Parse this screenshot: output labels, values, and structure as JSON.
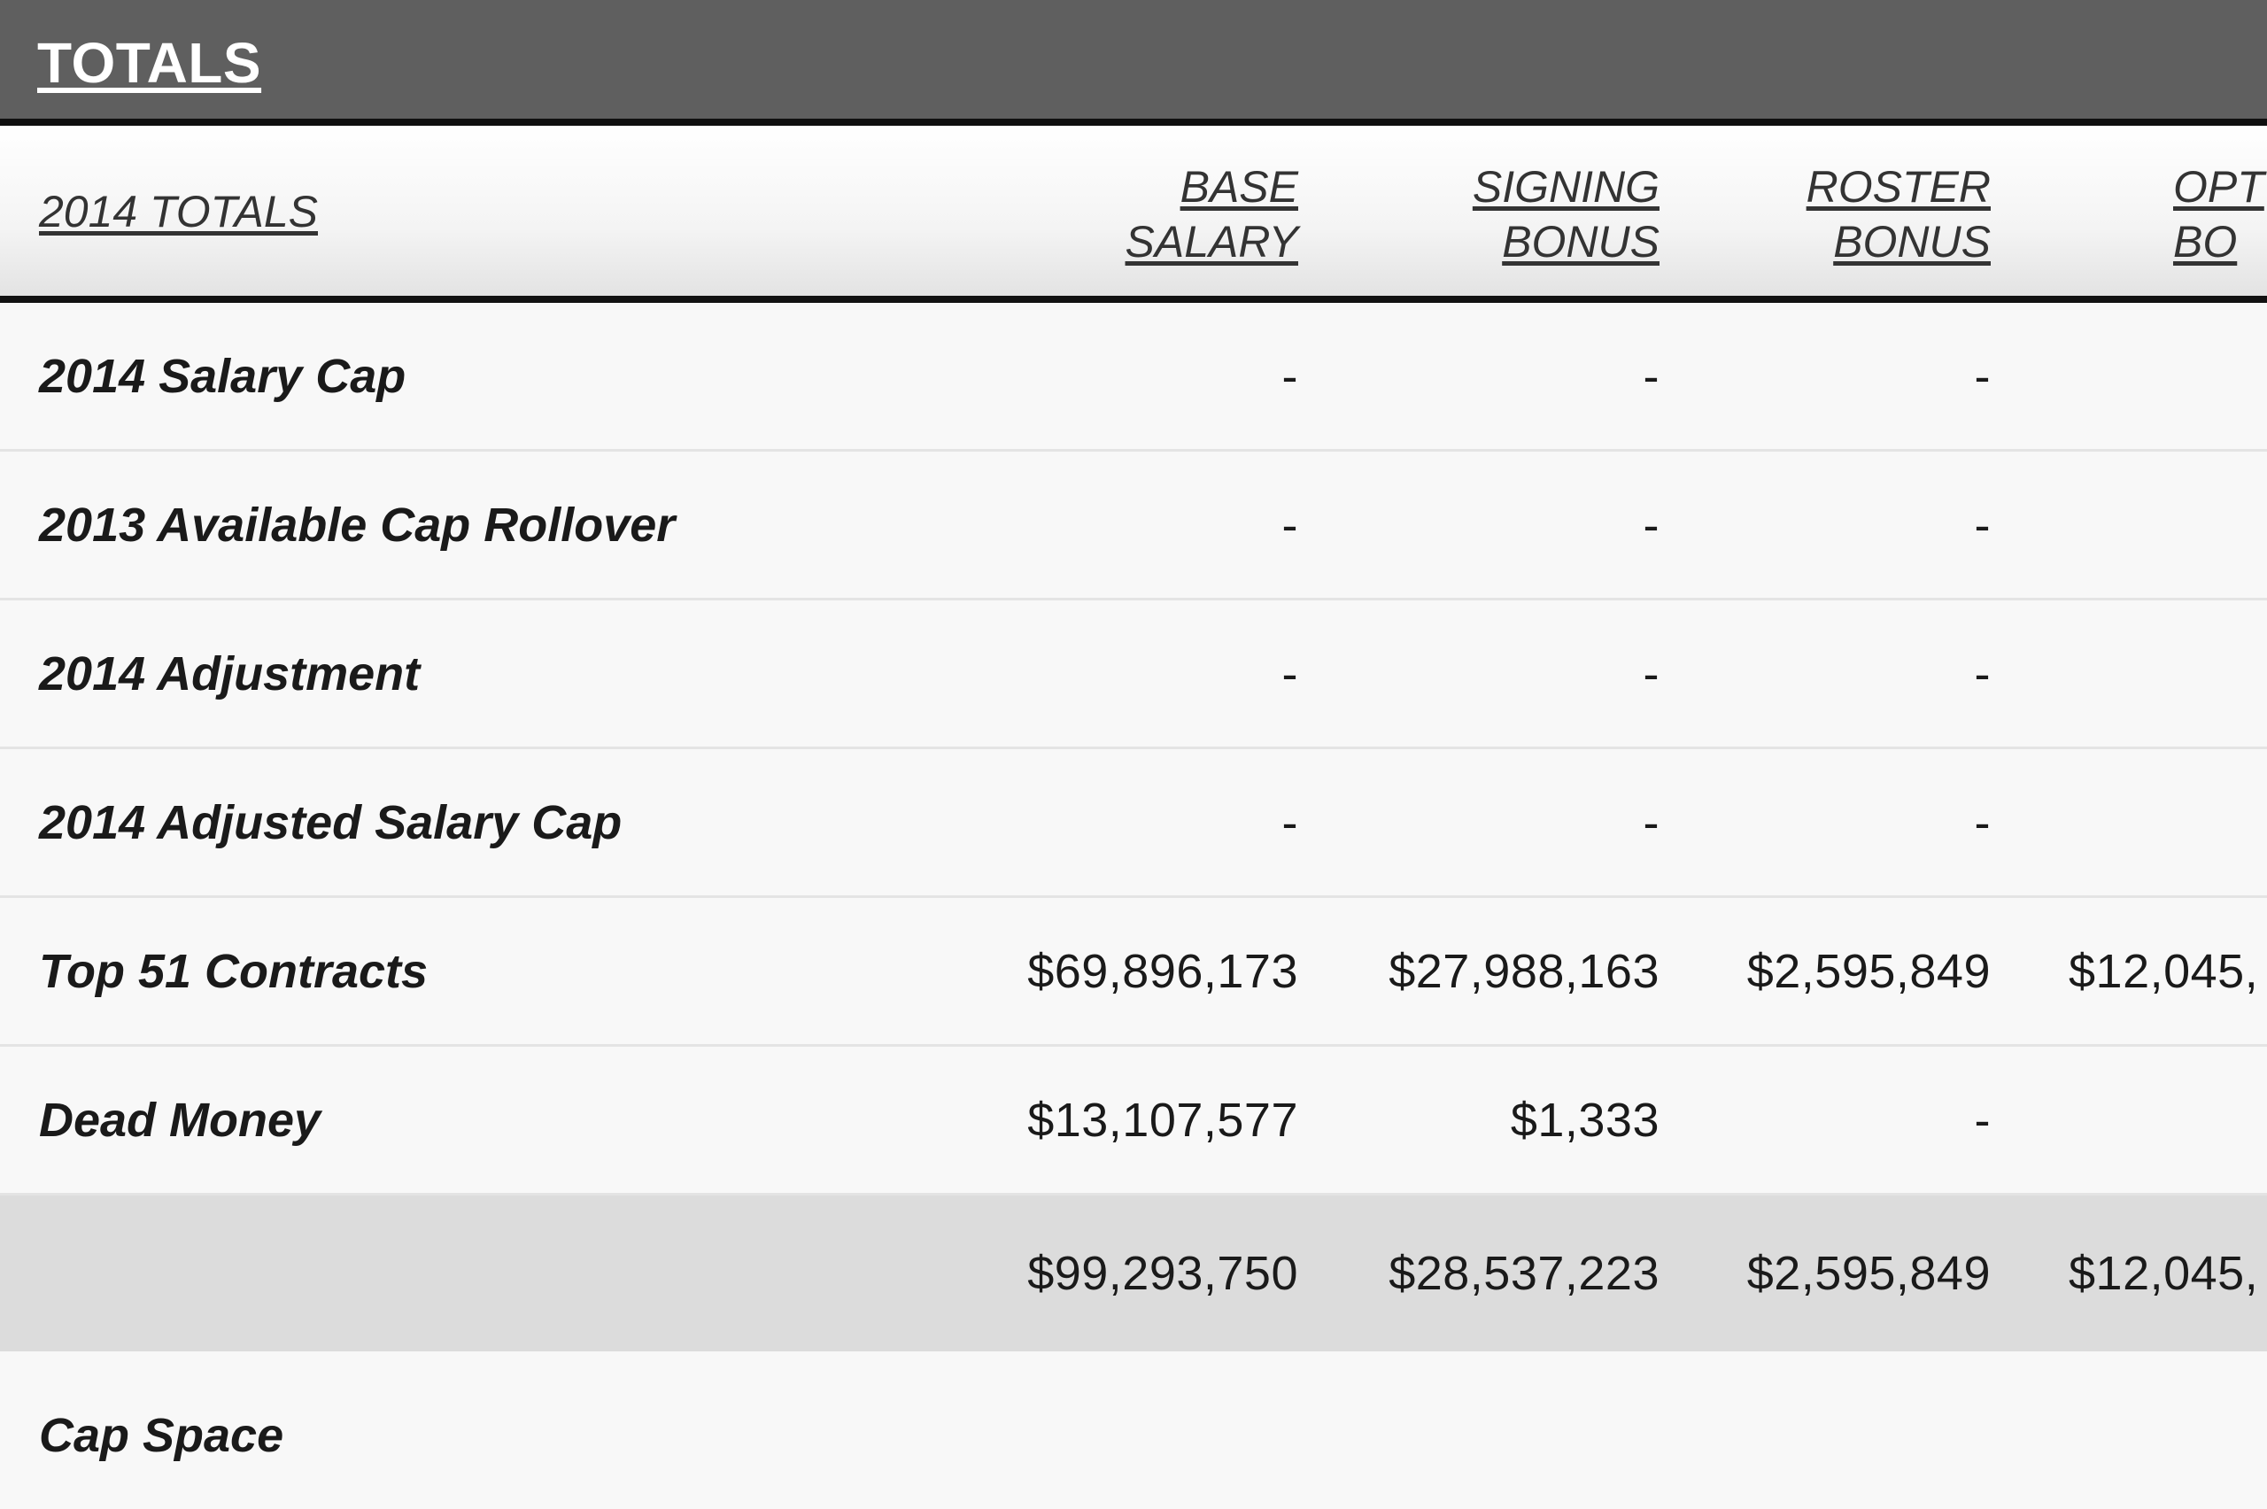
{
  "section": {
    "title": "TOTALS"
  },
  "table": {
    "header": {
      "label": "2014 TOTALS",
      "columns": [
        {
          "line1": "BASE",
          "line2": "SALARY"
        },
        {
          "line1": "SIGNING",
          "line2": "BONUS"
        },
        {
          "line1": "ROSTER",
          "line2": "BONUS"
        },
        {
          "line1": "OPT",
          "line2": "BO"
        }
      ]
    },
    "rows": [
      {
        "label": "2014 Salary Cap",
        "values": [
          "-",
          "-",
          "-",
          ""
        ]
      },
      {
        "label": "2013 Available Cap Rollover",
        "values": [
          "-",
          "-",
          "-",
          ""
        ]
      },
      {
        "label": "2014 Adjustment",
        "values": [
          "-",
          "-",
          "-",
          ""
        ]
      },
      {
        "label": "2014 Adjusted Salary Cap",
        "values": [
          "-",
          "-",
          "-",
          ""
        ]
      },
      {
        "label": "Top 51 Contracts",
        "values": [
          "$69,896,173",
          "$27,988,163",
          "$2,595,849",
          "$12,045,"
        ]
      },
      {
        "label": "Dead Money",
        "values": [
          "$13,107,577",
          "$1,333",
          "-",
          ""
        ]
      },
      {
        "label": "",
        "values": [
          "$99,293,750",
          "$28,537,223",
          "$2,595,849",
          "$12,045,"
        ]
      },
      {
        "label": "Cap Space",
        "values": [
          "",
          "",
          "",
          ""
        ]
      }
    ]
  }
}
